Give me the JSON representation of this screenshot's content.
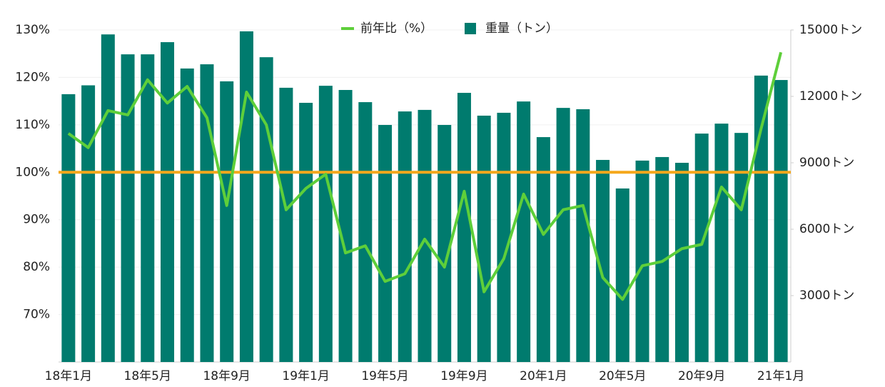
{
  "chart_data": {
    "type": "bar_line",
    "categories": [
      "18年1月",
      null,
      null,
      null,
      "18年5月",
      null,
      null,
      null,
      "18年9月",
      null,
      null,
      null,
      "19年1月",
      null,
      null,
      null,
      "19年5月",
      null,
      null,
      null,
      "19年9月",
      null,
      null,
      null,
      "20年1月",
      null,
      null,
      null,
      "20年5月",
      null,
      null,
      null,
      "20年9月",
      null,
      null,
      null,
      "21年1月"
    ],
    "series": [
      {
        "name": "前年比（%）",
        "type": "line",
        "axis": "y",
        "color": "#5ecf3a",
        "values": [
          108.2,
          105.2,
          113,
          112.1,
          119.5,
          114.6,
          118.1,
          111.5,
          93,
          116.9,
          110,
          92.1,
          96.6,
          99.6,
          83,
          84.5,
          77,
          78.6,
          85.9,
          80,
          96,
          74.8,
          81.8,
          95.4,
          86.9,
          92.1,
          93,
          77.8,
          73.2,
          80.3,
          81.2,
          83.9,
          84.8,
          96.9,
          92.1,
          109.2,
          125.3
        ]
      },
      {
        "name": "重量（トン）",
        "type": "bar",
        "axis": "y2",
        "color": "#007b6e",
        "values": [
          12100,
          12500,
          14800,
          13900,
          13900,
          14450,
          13260,
          13450,
          12680,
          14940,
          13770,
          12390,
          11710,
          12480,
          12290,
          11740,
          10710,
          11320,
          11390,
          10710,
          12160,
          11130,
          11260,
          11770,
          10160,
          11480,
          11420,
          9130,
          7840,
          9100,
          9260,
          9000,
          10320,
          10770,
          10350,
          12940,
          12740
        ]
      }
    ],
    "ylim": [
      60,
      130
    ],
    "yticks": [
      {
        "value": 70,
        "label": "70%"
      },
      {
        "value": 80,
        "label": "80%"
      },
      {
        "value": 90,
        "label": "90%"
      },
      {
        "value": 100,
        "label": "100%"
      },
      {
        "value": 110,
        "label": "110%"
      },
      {
        "value": 120,
        "label": "120%"
      },
      {
        "value": 130,
        "label": "130%"
      }
    ],
    "y2lim": [
      0,
      15000
    ],
    "y2ticks": [
      {
        "value": 3000,
        "label": "3000トン"
      },
      {
        "value": 6000,
        "label": "6000トン"
      },
      {
        "value": 9000,
        "label": "9000トン"
      },
      {
        "value": 12000,
        "label": "12000トン"
      },
      {
        "value": 15000,
        "label": "15000トン"
      }
    ],
    "reference_line": {
      "value": 100,
      "color": "#f5a81c"
    },
    "grid": true
  }
}
